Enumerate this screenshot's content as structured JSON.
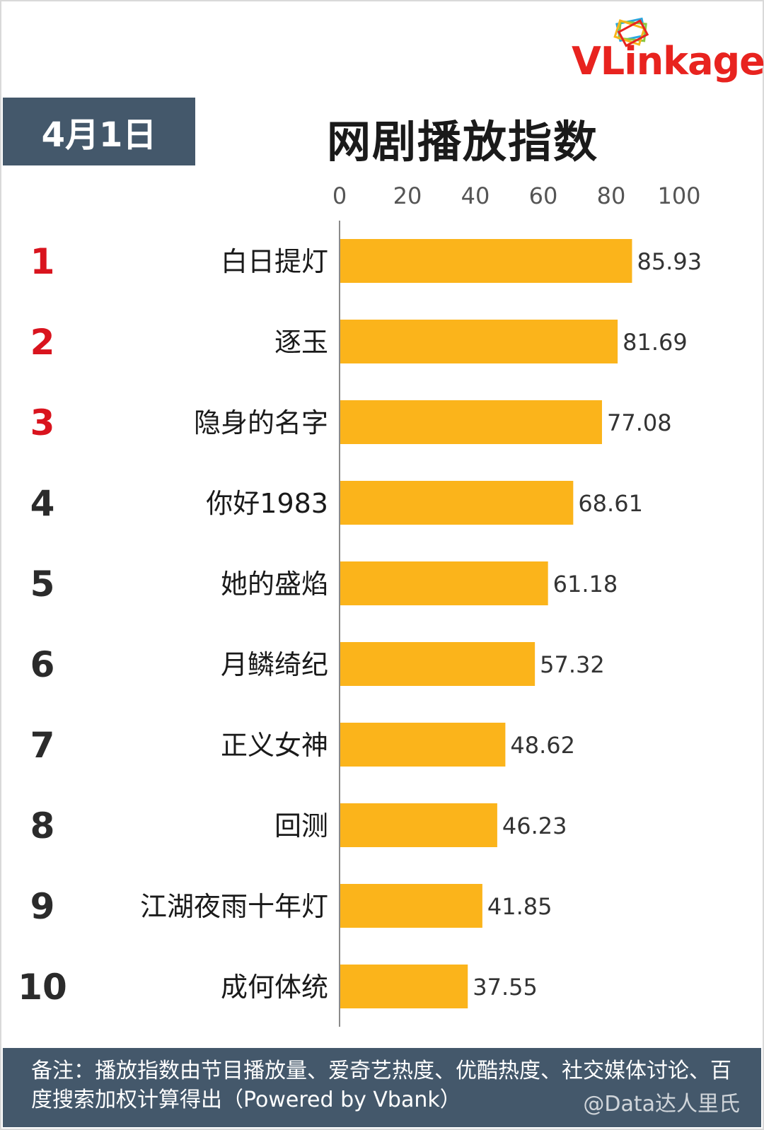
{
  "header": {
    "brand": "VLinkage",
    "date": "4月1日",
    "title": "网剧播放指数"
  },
  "chart_data": {
    "type": "bar",
    "orientation": "horizontal",
    "title": "网剧播放指数",
    "xlim": [
      0,
      100
    ],
    "x_ticks": [
      "0",
      "20",
      "40",
      "60",
      "80",
      "100"
    ],
    "ranks": [
      "1",
      "2",
      "3",
      "4",
      "5",
      "6",
      "7",
      "8",
      "9",
      "10"
    ],
    "categories": [
      "白日提灯",
      "逐玉",
      "隐身的名字",
      "你好1983",
      "她的盛焰",
      "月鳞绮纪",
      "正义女神",
      "回测",
      "江湖夜雨十年灯",
      "成何体统"
    ],
    "values": [
      85.93,
      81.69,
      77.08,
      68.61,
      61.18,
      57.32,
      48.62,
      46.23,
      41.85,
      37.55
    ],
    "value_labels": [
      "85.93",
      "81.69",
      "77.08",
      "68.61",
      "61.18",
      "57.32",
      "48.62",
      "46.23",
      "41.85",
      "37.55"
    ],
    "bar_color": "#fbb41b",
    "top_rank_color": "#d9141e",
    "rank_color": "#2b2b2b",
    "grid": false
  },
  "footer": {
    "note": "备注：播放指数由节目播放量、爱奇艺热度、优酷热度、社交媒体讨论、百度搜索加权计算得出（Powered by Vbank）",
    "watermark": "@Data达人里氏"
  }
}
